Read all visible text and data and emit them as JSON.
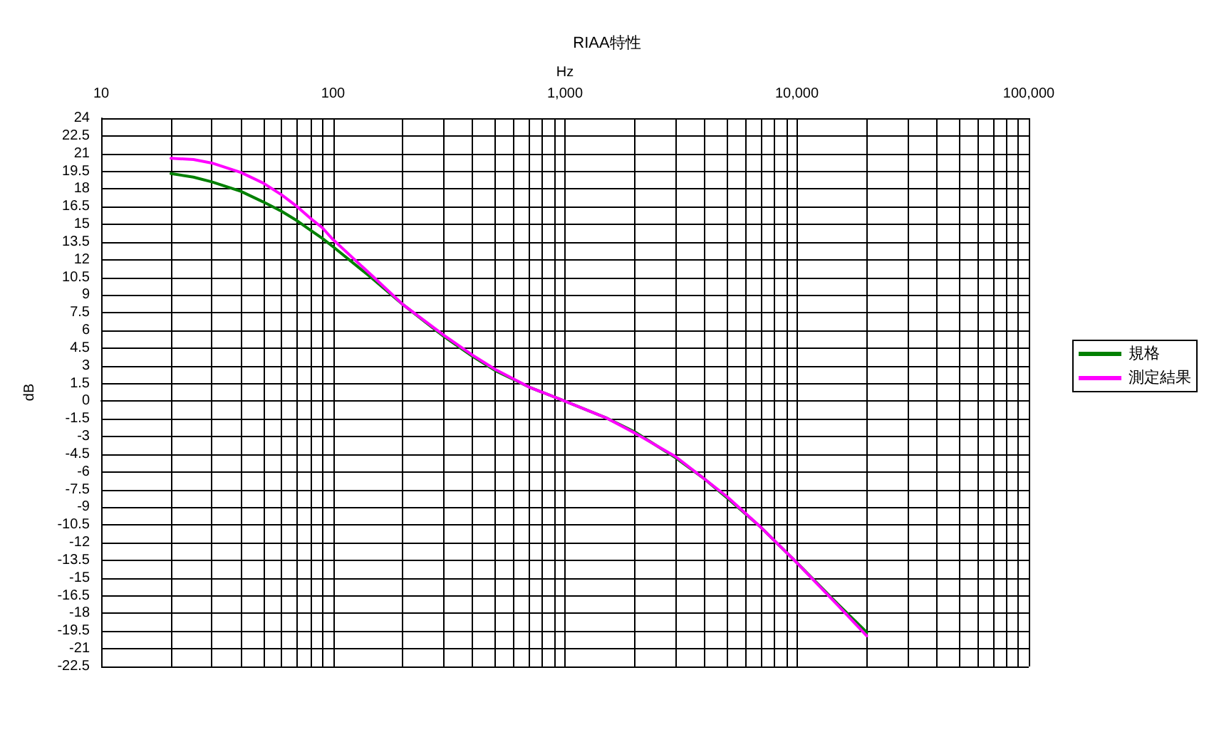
{
  "chart_data": {
    "type": "line",
    "title": "RIAA特性",
    "xlabel": "Hz",
    "ylabel": "dB",
    "log": "x",
    "grid": true,
    "legend": "right",
    "marker": "none",
    "line_style": "solid",
    "x": [
      20,
      25,
      30,
      40,
      50,
      60,
      70,
      80,
      90,
      100,
      150,
      200,
      300,
      400,
      500,
      700,
      1000,
      1500,
      2000,
      3000,
      4000,
      5000,
      7000,
      10000,
      15000,
      20000
    ],
    "series": [
      {
        "name": "規格",
        "color": "#008000",
        "values": [
          19.3,
          19.0,
          18.6,
          17.8,
          16.9,
          16.1,
          15.3,
          14.5,
          13.8,
          13.1,
          10.3,
          8.2,
          5.5,
          3.8,
          2.6,
          1.2,
          0,
          -1.4,
          -2.6,
          -4.8,
          -6.6,
          -8.2,
          -10.7,
          -13.7,
          -17.2,
          -19.6
        ]
      },
      {
        "name": "測定結果",
        "color": "#ff00ff",
        "values": [
          20.6,
          20.5,
          20.2,
          19.4,
          18.5,
          17.5,
          16.5,
          15.5,
          14.7,
          13.7,
          10.5,
          8.2,
          5.6,
          3.9,
          2.7,
          1.2,
          0,
          -1.4,
          -2.7,
          -4.7,
          -6.6,
          -8.1,
          -10.7,
          -13.7,
          -17.3,
          -19.9
        ]
      }
    ],
    "xlim": [
      10,
      100000
    ],
    "xticks": [
      10,
      {
        "value": 20,
        "label": null
      },
      {
        "value": 30,
        "label": null
      },
      {
        "value": 40,
        "label": null
      },
      {
        "value": 50,
        "label": null
      },
      {
        "value": 60,
        "label": null
      },
      {
        "value": 70,
        "label": null
      },
      {
        "value": 80,
        "label": null
      },
      {
        "value": 90,
        "label": null
      },
      100,
      {
        "value": 200,
        "label": null
      },
      {
        "value": 300,
        "label": null
      },
      {
        "value": 400,
        "label": null
      },
      {
        "value": 500,
        "label": null
      },
      {
        "value": 600,
        "label": null
      },
      {
        "value": 700,
        "label": null
      },
      {
        "value": 800,
        "label": null
      },
      {
        "value": 900,
        "label": null
      },
      {
        "value": 1000,
        "label": "1,000"
      },
      {
        "value": 2000,
        "label": null
      },
      {
        "value": 3000,
        "label": null
      },
      {
        "value": 4000,
        "label": null
      },
      {
        "value": 5000,
        "label": null
      },
      {
        "value": 6000,
        "label": null
      },
      {
        "value": 7000,
        "label": null
      },
      {
        "value": 8000,
        "label": null
      },
      {
        "value": 9000,
        "label": null
      },
      {
        "value": 10000,
        "label": "10,000"
      },
      {
        "value": 20000,
        "label": null
      },
      {
        "value": 30000,
        "label": null
      },
      {
        "value": 40000,
        "label": null
      },
      {
        "value": 50000,
        "label": null
      },
      {
        "value": 60000,
        "label": null
      },
      {
        "value": 70000,
        "label": null
      },
      {
        "value": 80000,
        "label": null
      },
      {
        "value": 90000,
        "label": null
      },
      {
        "value": 100000,
        "label": "100,000"
      }
    ],
    "ylim": [
      -22.5,
      24
    ],
    "yticks": [
      -22.5,
      -21,
      -19.5,
      -18,
      -16.5,
      -15,
      -13.5,
      -12,
      -10.5,
      -9,
      -7.5,
      -6,
      -4.5,
      -3,
      -1.5,
      0,
      1.5,
      3,
      4.5,
      6,
      7.5,
      9,
      10.5,
      12,
      13.5,
      15,
      16.5,
      18,
      19.5,
      21,
      22.5,
      24
    ]
  }
}
